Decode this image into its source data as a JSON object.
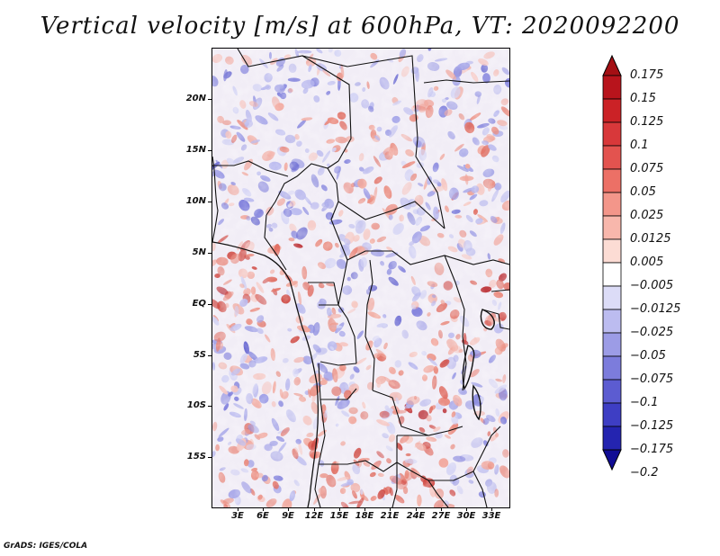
{
  "title": "Vertical velocity [m/s] at 600hPa, VT: 2020092200",
  "footer": "GrADS: IGES/COLA",
  "lat_labels": [
    "20N",
    "15N",
    "10N",
    "5N",
    "EQ",
    "5S",
    "10S",
    "15S"
  ],
  "lon_labels": [
    "3E",
    "6E",
    "9E",
    "12E",
    "15E",
    "18E",
    "21E",
    "24E",
    "27E",
    "30E",
    "33E"
  ],
  "colorbar": {
    "labels": [
      "0.175",
      "0.15",
      "0.125",
      "0.1",
      "0.075",
      "0.05",
      "0.025",
      "0.0125",
      "0.005",
      "-0.005",
      "-0.0125",
      "-0.025",
      "-0.05",
      "-0.075",
      "-0.1",
      "-0.125",
      "-0.175",
      "-0.2"
    ],
    "colors": [
      "#a40f14",
      "#b8141c",
      "#cb2226",
      "#d8383a",
      "#e3534f",
      "#ec7066",
      "#f3968a",
      "#f8b7ac",
      "#fcdcd4",
      "#ffffff",
      "#dcdcf7",
      "#bcbcf0",
      "#9c9ce6",
      "#7c7cdc",
      "#5c5cd1",
      "#3e3ec4",
      "#2424b0",
      "#100c94"
    ]
  }
}
